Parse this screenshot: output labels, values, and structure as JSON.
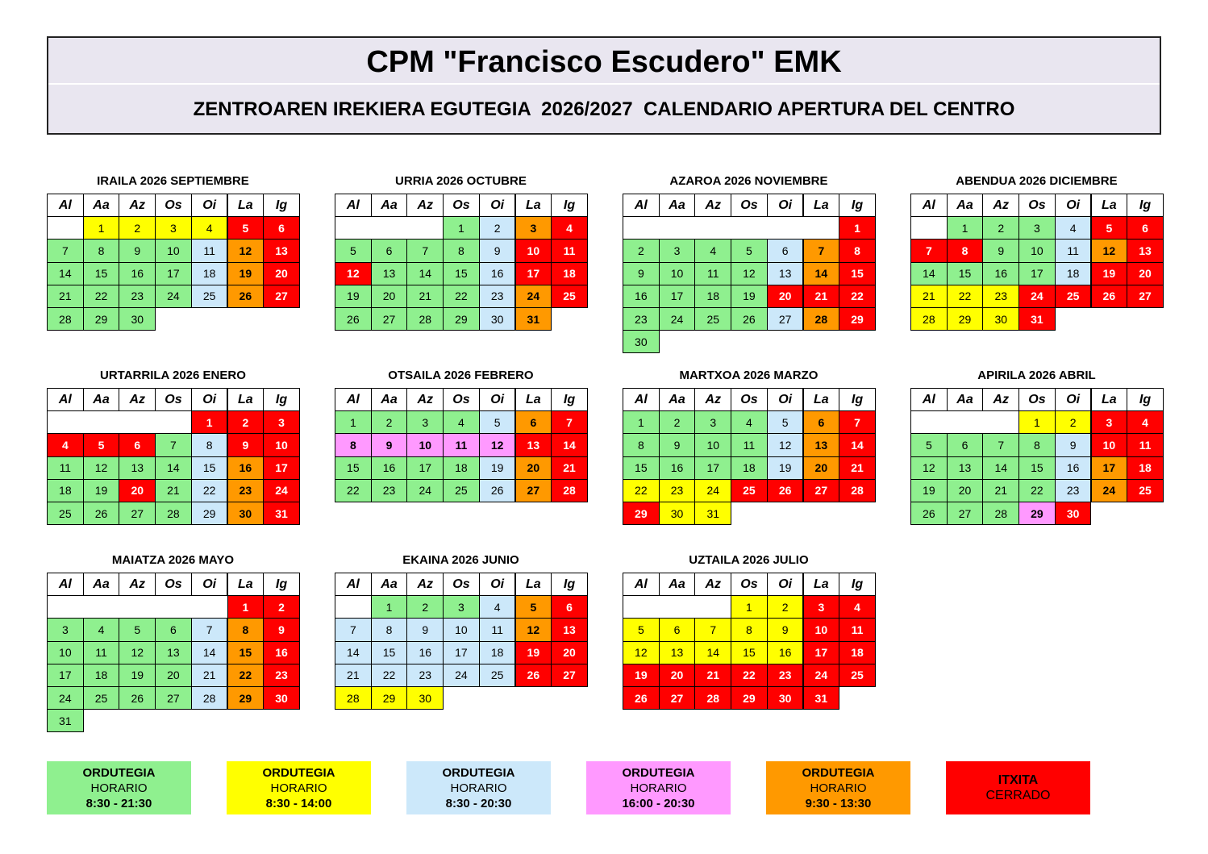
{
  "header": {
    "title": "CPM \"Francisco Escudero\" EMK",
    "subtitle": "ZENTROAREN IREKIERA EGUTEGIA  2026/2027  CALENDARIO APERTURA DEL CENTRO"
  },
  "weekdays": [
    "Al",
    "Aa",
    "Az",
    "Os",
    "Oi",
    "La",
    "Ig"
  ],
  "months": [
    {
      "title": "IRAILA 2026 SEPTIEMBRE",
      "weeks": [
        [
          null,
          1,
          2,
          3,
          4,
          5,
          6
        ],
        [
          7,
          8,
          9,
          10,
          11,
          12,
          13
        ],
        [
          14,
          15,
          16,
          17,
          18,
          19,
          20
        ],
        [
          21,
          22,
          23,
          24,
          25,
          26,
          27
        ],
        [
          28,
          29,
          30
        ]
      ],
      "fills": "111155000024500002450000245000"
    },
    {
      "title": "URRIA 2026 OCTUBRE",
      "weeks": [
        [
          null,
          null,
          null,
          1,
          2,
          3,
          4
        ],
        [
          5,
          6,
          7,
          8,
          9,
          10,
          11
        ],
        [
          12,
          13,
          14,
          15,
          16,
          17,
          18
        ],
        [
          19,
          20,
          21,
          22,
          23,
          24,
          25
        ],
        [
          26,
          27,
          28,
          29,
          30,
          31
        ]
      ],
      "fills": "0245000025550002550000245000024"
    },
    {
      "title": "AZAROA 2026 NOVIEMBRE",
      "weeks": [
        [
          null,
          null,
          null,
          null,
          null,
          null,
          1
        ],
        [
          2,
          3,
          4,
          5,
          6,
          7,
          8
        ],
        [
          9,
          10,
          11,
          12,
          13,
          14,
          15
        ],
        [
          16,
          17,
          18,
          19,
          20,
          21,
          22
        ],
        [
          23,
          24,
          25,
          26,
          27,
          28,
          29
        ],
        [
          30
        ]
      ],
      "fills": "500002450000245000055500002450"
    },
    {
      "title": "ABENDUA 2026 DICIEMBRE",
      "weeks": [
        [
          null,
          1,
          2,
          3,
          4,
          5,
          6
        ],
        [
          7,
          8,
          9,
          10,
          11,
          12,
          13
        ],
        [
          14,
          15,
          16,
          17,
          18,
          19,
          20
        ],
        [
          21,
          22,
          23,
          24,
          25,
          26,
          27
        ],
        [
          28,
          29,
          30,
          31
        ]
      ],
      "fills": "0002555500245000025511155551115"
    },
    {
      "title": "URTARRILA 2026 ENERO",
      "weeks": [
        [
          null,
          null,
          null,
          null,
          1,
          2,
          3
        ],
        [
          4,
          5,
          6,
          7,
          8,
          9,
          10
        ],
        [
          11,
          12,
          13,
          14,
          15,
          16,
          17
        ],
        [
          18,
          19,
          20,
          21,
          22,
          23,
          24
        ],
        [
          25,
          26,
          27,
          28,
          29,
          30,
          31
        ]
      ],
      "fills": "5555550255000024500502450000245"
    },
    {
      "title": "OTSAILA 2026 FEBRERO",
      "weeks": [
        [
          1,
          2,
          3,
          4,
          5,
          6,
          7
        ],
        [
          8,
          9,
          10,
          11,
          12,
          13,
          14
        ],
        [
          15,
          16,
          17,
          18,
          19,
          20,
          21
        ],
        [
          22,
          23,
          24,
          25,
          26,
          27,
          28
        ]
      ],
      "fills": "0000245333335500002450000245"
    },
    {
      "title": "MARTXOA 2026 MARZO",
      "weeks": [
        [
          1,
          2,
          3,
          4,
          5,
          6,
          7
        ],
        [
          8,
          9,
          10,
          11,
          12,
          13,
          14
        ],
        [
          15,
          16,
          17,
          18,
          19,
          20,
          21
        ],
        [
          22,
          23,
          24,
          25,
          26,
          27,
          28
        ],
        [
          29,
          30,
          31
        ]
      ],
      "fills": "0000245000024500002451115555511"
    },
    {
      "title": "APIRILA 2026 ABRIL",
      "weeks": [
        [
          null,
          null,
          null,
          1,
          2,
          3,
          4
        ],
        [
          5,
          6,
          7,
          8,
          9,
          10,
          11
        ],
        [
          12,
          13,
          14,
          15,
          16,
          17,
          18
        ],
        [
          19,
          20,
          21,
          22,
          23,
          24,
          25
        ],
        [
          26,
          27,
          28,
          29,
          30
        ]
      ],
      "fills": "115500002550000245000024500035"
    },
    {
      "title": "MAIATZA 2026 MAYO",
      "weeks": [
        [
          null,
          null,
          null,
          null,
          null,
          1,
          2
        ],
        [
          3,
          4,
          5,
          6,
          7,
          8,
          9
        ],
        [
          10,
          11,
          12,
          13,
          14,
          15,
          16
        ],
        [
          17,
          18,
          19,
          20,
          21,
          22,
          23
        ],
        [
          24,
          25,
          26,
          27,
          28,
          29,
          30
        ],
        [
          31
        ]
      ],
      "fills": "5500002450000245000024500002450"
    },
    {
      "title": "EKAINA 2026 JUNIO",
      "weeks": [
        [
          null,
          1,
          2,
          3,
          4,
          5,
          6
        ],
        [
          7,
          8,
          9,
          10,
          11,
          12,
          13
        ],
        [
          14,
          15,
          16,
          17,
          18,
          19,
          20
        ],
        [
          21,
          22,
          23,
          24,
          25,
          26,
          27
        ],
        [
          28,
          29,
          30
        ]
      ],
      "fills": "000245222224522222552222255111"
    },
    {
      "title": "UZTAILA 2026 JULIO",
      "weeks": [
        [
          null,
          null,
          null,
          1,
          2,
          3,
          4
        ],
        [
          5,
          6,
          7,
          8,
          9,
          10,
          11
        ],
        [
          12,
          13,
          14,
          15,
          16,
          17,
          18
        ],
        [
          19,
          20,
          21,
          22,
          23,
          24,
          25
        ],
        [
          26,
          27,
          28,
          29,
          30,
          31
        ]
      ],
      "fills": "1155111115511111555555555555555"
    }
  ],
  "legend": [
    {
      "lines": [
        "ORDUTEGIA",
        "HORARIO",
        "8:30 - 21:30"
      ],
      "color": "#8ff08f"
    },
    {
      "lines": [
        "ORDUTEGIA",
        "HORARIO",
        "8:30 - 14:00"
      ],
      "color": "#ffff00"
    },
    {
      "lines": [
        "ORDUTEGIA",
        "HORARIO",
        "8:30 - 20:30"
      ],
      "color": "#cce8fa"
    },
    {
      "lines": [
        "ORDUTEGIA",
        "HORARIO",
        "16:00 - 20:30"
      ],
      "color": "#ff99ff"
    },
    {
      "lines": [
        "ORDUTEGIA",
        "HORARIO",
        "9:30 - 13:30"
      ],
      "color": "#ff9900"
    },
    {
      "lines": [
        "ITXITA",
        "CERRADO"
      ],
      "color": "#ff0000"
    }
  ]
}
